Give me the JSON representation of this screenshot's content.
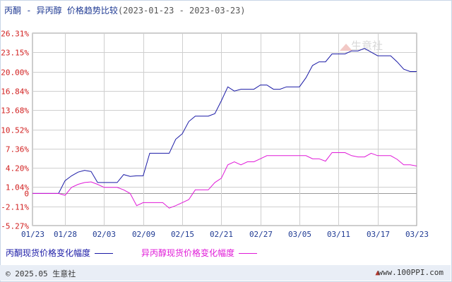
{
  "title": {
    "main": "丙酮 - 异丙醇 价格趋势比较",
    "range": "(2023-01-23 - 2023-03-23)"
  },
  "watermark": "生意社",
  "footer": {
    "copyright": "© 2025.05 生意社",
    "url": "www.100PPI.com"
  },
  "colors": {
    "series1": "#1a1aa6",
    "series2": "#e01ad8",
    "axis_labels": "#d11f1f",
    "grid": "#cfcfcf"
  },
  "chart_data": {
    "type": "line",
    "y_ticks": [
      "26.31%",
      "23.15%",
      "20.00%",
      "16.84%",
      "13.68%",
      "10.52%",
      "7.36%",
      "4.20%",
      "1.04%",
      "0",
      "-2.11%",
      "-5.27%"
    ],
    "ylim": [
      -5.27,
      26.31
    ],
    "x_ticks": [
      "01/23",
      "01/28",
      "02/03",
      "02/09",
      "02/15",
      "02/21",
      "02/27",
      "03/05",
      "03/11",
      "03/17",
      "03/23"
    ],
    "x_range": [
      "01/23",
      "03/23"
    ],
    "grid": true,
    "legend_position": "bottom",
    "series": [
      {
        "name": "丙酮现货价格变化幅度",
        "points": [
          [
            "01/23",
            0
          ],
          [
            "01/27",
            0
          ],
          [
            "01/28",
            2.1
          ],
          [
            "01/29",
            2.9
          ],
          [
            "01/30",
            3.5
          ],
          [
            "01/31",
            3.8
          ],
          [
            "02/01",
            3.6
          ],
          [
            "02/02",
            1.8
          ],
          [
            "02/03",
            1.8
          ],
          [
            "02/04",
            1.8
          ],
          [
            "02/05",
            1.8
          ],
          [
            "02/06",
            3.1
          ],
          [
            "02/07",
            2.8
          ],
          [
            "02/08",
            2.9
          ],
          [
            "02/09",
            2.9
          ],
          [
            "02/10",
            6.6
          ],
          [
            "02/11",
            6.6
          ],
          [
            "02/12",
            6.6
          ],
          [
            "02/13",
            6.6
          ],
          [
            "02/14",
            8.9
          ],
          [
            "02/15",
            9.8
          ],
          [
            "02/16",
            11.8
          ],
          [
            "02/17",
            12.7
          ],
          [
            "02/18",
            12.7
          ],
          [
            "02/19",
            12.7
          ],
          [
            "02/20",
            13.1
          ],
          [
            "02/21",
            15.2
          ],
          [
            "02/22",
            17.5
          ],
          [
            "02/23",
            16.8
          ],
          [
            "02/24",
            17.1
          ],
          [
            "02/25",
            17.1
          ],
          [
            "02/26",
            17.1
          ],
          [
            "02/27",
            17.8
          ],
          [
            "02/28",
            17.8
          ],
          [
            "03/01",
            17.1
          ],
          [
            "03/02",
            17.1
          ],
          [
            "03/03",
            17.5
          ],
          [
            "03/04",
            17.5
          ],
          [
            "03/05",
            17.5
          ],
          [
            "03/06",
            19.0
          ],
          [
            "03/07",
            21.0
          ],
          [
            "03/08",
            21.6
          ],
          [
            "03/09",
            21.6
          ],
          [
            "03/10",
            22.9
          ],
          [
            "03/11",
            22.9
          ],
          [
            "03/12",
            22.9
          ],
          [
            "03/13",
            23.4
          ],
          [
            "03/14",
            23.4
          ],
          [
            "03/15",
            23.8
          ],
          [
            "03/16",
            23.2
          ],
          [
            "03/17",
            22.6
          ],
          [
            "03/18",
            22.6
          ],
          [
            "03/19",
            22.6
          ],
          [
            "03/20",
            21.6
          ],
          [
            "03/21",
            20.4
          ],
          [
            "03/22",
            20.0
          ],
          [
            "03/23",
            20.0
          ]
        ]
      },
      {
        "name": "异丙醇现货价格变化幅度",
        "points": [
          [
            "01/23",
            0
          ],
          [
            "01/27",
            0
          ],
          [
            "01/28",
            -0.3
          ],
          [
            "01/29",
            1.0
          ],
          [
            "01/30",
            1.5
          ],
          [
            "01/31",
            1.8
          ],
          [
            "02/01",
            1.9
          ],
          [
            "02/02",
            1.5
          ],
          [
            "02/03",
            1.0
          ],
          [
            "02/04",
            1.0
          ],
          [
            "02/05",
            1.0
          ],
          [
            "02/06",
            0.6
          ],
          [
            "02/07",
            0.0
          ],
          [
            "02/08",
            -2.0
          ],
          [
            "02/09",
            -1.5
          ],
          [
            "02/10",
            -1.5
          ],
          [
            "02/11",
            -1.5
          ],
          [
            "02/12",
            -1.5
          ],
          [
            "02/13",
            -2.4
          ],
          [
            "02/14",
            -2.0
          ],
          [
            "02/15",
            -1.5
          ],
          [
            "02/16",
            -1.0
          ],
          [
            "02/17",
            0.6
          ],
          [
            "02/18",
            0.6
          ],
          [
            "02/19",
            0.6
          ],
          [
            "02/20",
            1.8
          ],
          [
            "02/21",
            2.5
          ],
          [
            "02/22",
            4.7
          ],
          [
            "02/23",
            5.2
          ],
          [
            "02/24",
            4.7
          ],
          [
            "02/25",
            5.2
          ],
          [
            "02/26",
            5.2
          ],
          [
            "02/27",
            5.7
          ],
          [
            "02/28",
            6.2
          ],
          [
            "03/01",
            6.2
          ],
          [
            "03/02",
            6.2
          ],
          [
            "03/03",
            6.2
          ],
          [
            "03/04",
            6.2
          ],
          [
            "03/05",
            6.2
          ],
          [
            "03/06",
            6.2
          ],
          [
            "03/07",
            5.7
          ],
          [
            "03/08",
            5.7
          ],
          [
            "03/09",
            5.3
          ],
          [
            "03/10",
            6.7
          ],
          [
            "03/11",
            6.7
          ],
          [
            "03/12",
            6.7
          ],
          [
            "03/13",
            6.2
          ],
          [
            "03/14",
            6.0
          ],
          [
            "03/15",
            6.0
          ],
          [
            "03/16",
            6.6
          ],
          [
            "03/17",
            6.2
          ],
          [
            "03/18",
            6.2
          ],
          [
            "03/19",
            6.2
          ],
          [
            "03/20",
            5.6
          ],
          [
            "03/21",
            4.7
          ],
          [
            "03/22",
            4.7
          ],
          [
            "03/23",
            4.5
          ]
        ]
      }
    ]
  }
}
